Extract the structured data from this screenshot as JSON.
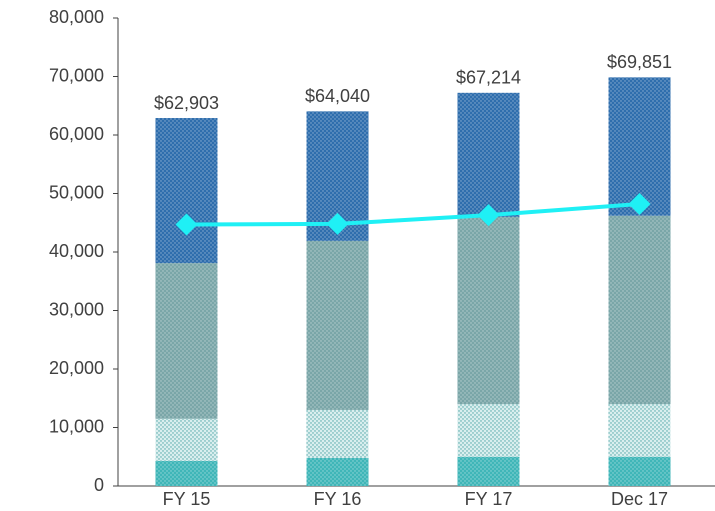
{
  "chart_data": {
    "type": "stacked-bar-line",
    "categories": [
      "FY 15",
      "FY 16",
      "FY 17",
      "Dec 17"
    ],
    "series": [
      {
        "color": "#3fb6b8",
        "values": [
          4300,
          4800,
          5000,
          5000
        ]
      },
      {
        "color": "#d9eeee",
        "values": [
          7200,
          8200,
          9000,
          9000
        ]
      },
      {
        "color": "#7aa6a8",
        "values": [
          26600,
          28900,
          32000,
          32200
        ]
      },
      {
        "color": "#2f6ead",
        "values": [
          24803,
          22140,
          21214,
          23651
        ]
      }
    ],
    "totals": [
      62903,
      64040,
      67214,
      69851
    ],
    "total_labels": [
      "$62,903",
      "$64,040",
      "$67,214",
      "$69,851"
    ],
    "line": {
      "color": "#1ff0f5",
      "values": [
        44700,
        44800,
        46300,
        48200
      ]
    },
    "ylim": [
      0,
      80000
    ],
    "yticks": [
      0,
      {
        "value": 10000,
        "label": "10,000"
      },
      {
        "value": 20000,
        "label": "20,000"
      },
      {
        "value": 30000,
        "label": "30,000"
      },
      {
        "value": 40000,
        "label": "40,000"
      },
      {
        "value": 50000,
        "label": "50,000"
      },
      {
        "value": 60000,
        "label": "60,000"
      },
      {
        "value": 70000,
        "label": "70,000"
      },
      {
        "value": 80000,
        "label": "80,000"
      }
    ],
    "grid": false
  }
}
